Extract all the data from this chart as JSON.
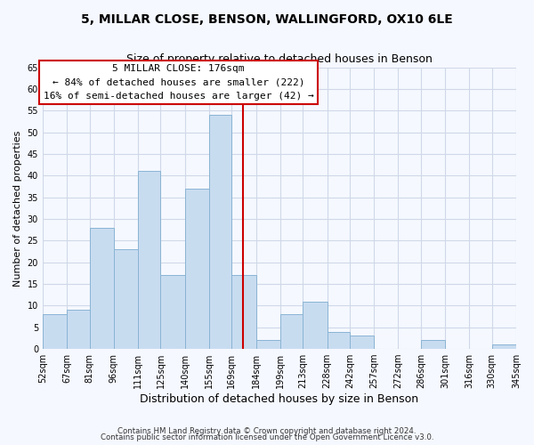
{
  "title1": "5, MILLAR CLOSE, BENSON, WALLINGFORD, OX10 6LE",
  "title2": "Size of property relative to detached houses in Benson",
  "xlabel": "Distribution of detached houses by size in Benson",
  "ylabel": "Number of detached properties",
  "bin_edges": [
    52,
    67,
    81,
    96,
    111,
    125,
    140,
    155,
    169,
    184,
    199,
    213,
    228,
    242,
    257,
    272,
    286,
    301,
    316,
    330,
    345
  ],
  "bin_labels": [
    "52sqm",
    "67sqm",
    "81sqm",
    "96sqm",
    "111sqm",
    "125sqm",
    "140sqm",
    "155sqm",
    "169sqm",
    "184sqm",
    "199sqm",
    "213sqm",
    "228sqm",
    "242sqm",
    "257sqm",
    "272sqm",
    "286sqm",
    "301sqm",
    "316sqm",
    "330sqm",
    "345sqm"
  ],
  "counts": [
    8,
    9,
    28,
    23,
    41,
    17,
    37,
    54,
    17,
    2,
    8,
    11,
    4,
    3,
    0,
    0,
    2,
    0,
    0,
    1
  ],
  "bar_color": "#c8dcf0",
  "bar_edge_color": "#8ab4d4",
  "vline_x": 176,
  "vline_color": "#cc0000",
  "annotation_title": "5 MILLAR CLOSE: 176sqm",
  "annotation_line1": "← 84% of detached houses are smaller (222)",
  "annotation_line2": "16% of semi-detached houses are larger (42) →",
  "annotation_box_color": "#ffffff",
  "annotation_box_edge": "#cc0000",
  "footer1": "Contains HM Land Registry data © Crown copyright and database right 2024.",
  "footer2": "Contains public sector information licensed under the Open Government Licence v3.0.",
  "ylim": [
    0,
    65
  ],
  "yticks": [
    0,
    5,
    10,
    15,
    20,
    25,
    30,
    35,
    40,
    45,
    50,
    55,
    60,
    65
  ],
  "background_color": "#f5f8ff",
  "grid_color": "#d0d8e8"
}
